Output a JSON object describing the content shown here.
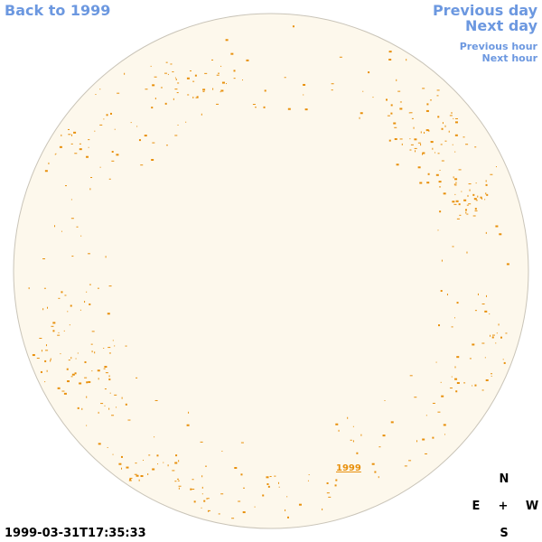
{
  "nav": {
    "back": "Back to 1999",
    "previous_day": "Previous day",
    "next_day": "Next day",
    "previous_hour": "Previous hour",
    "next_hour": "Next hour"
  },
  "disk_label": "1999",
  "compass": {
    "north": "N",
    "east": "E",
    "center": "+",
    "west": "W",
    "south": "S"
  },
  "timestamp": "1999-03-31T17:35:33"
}
